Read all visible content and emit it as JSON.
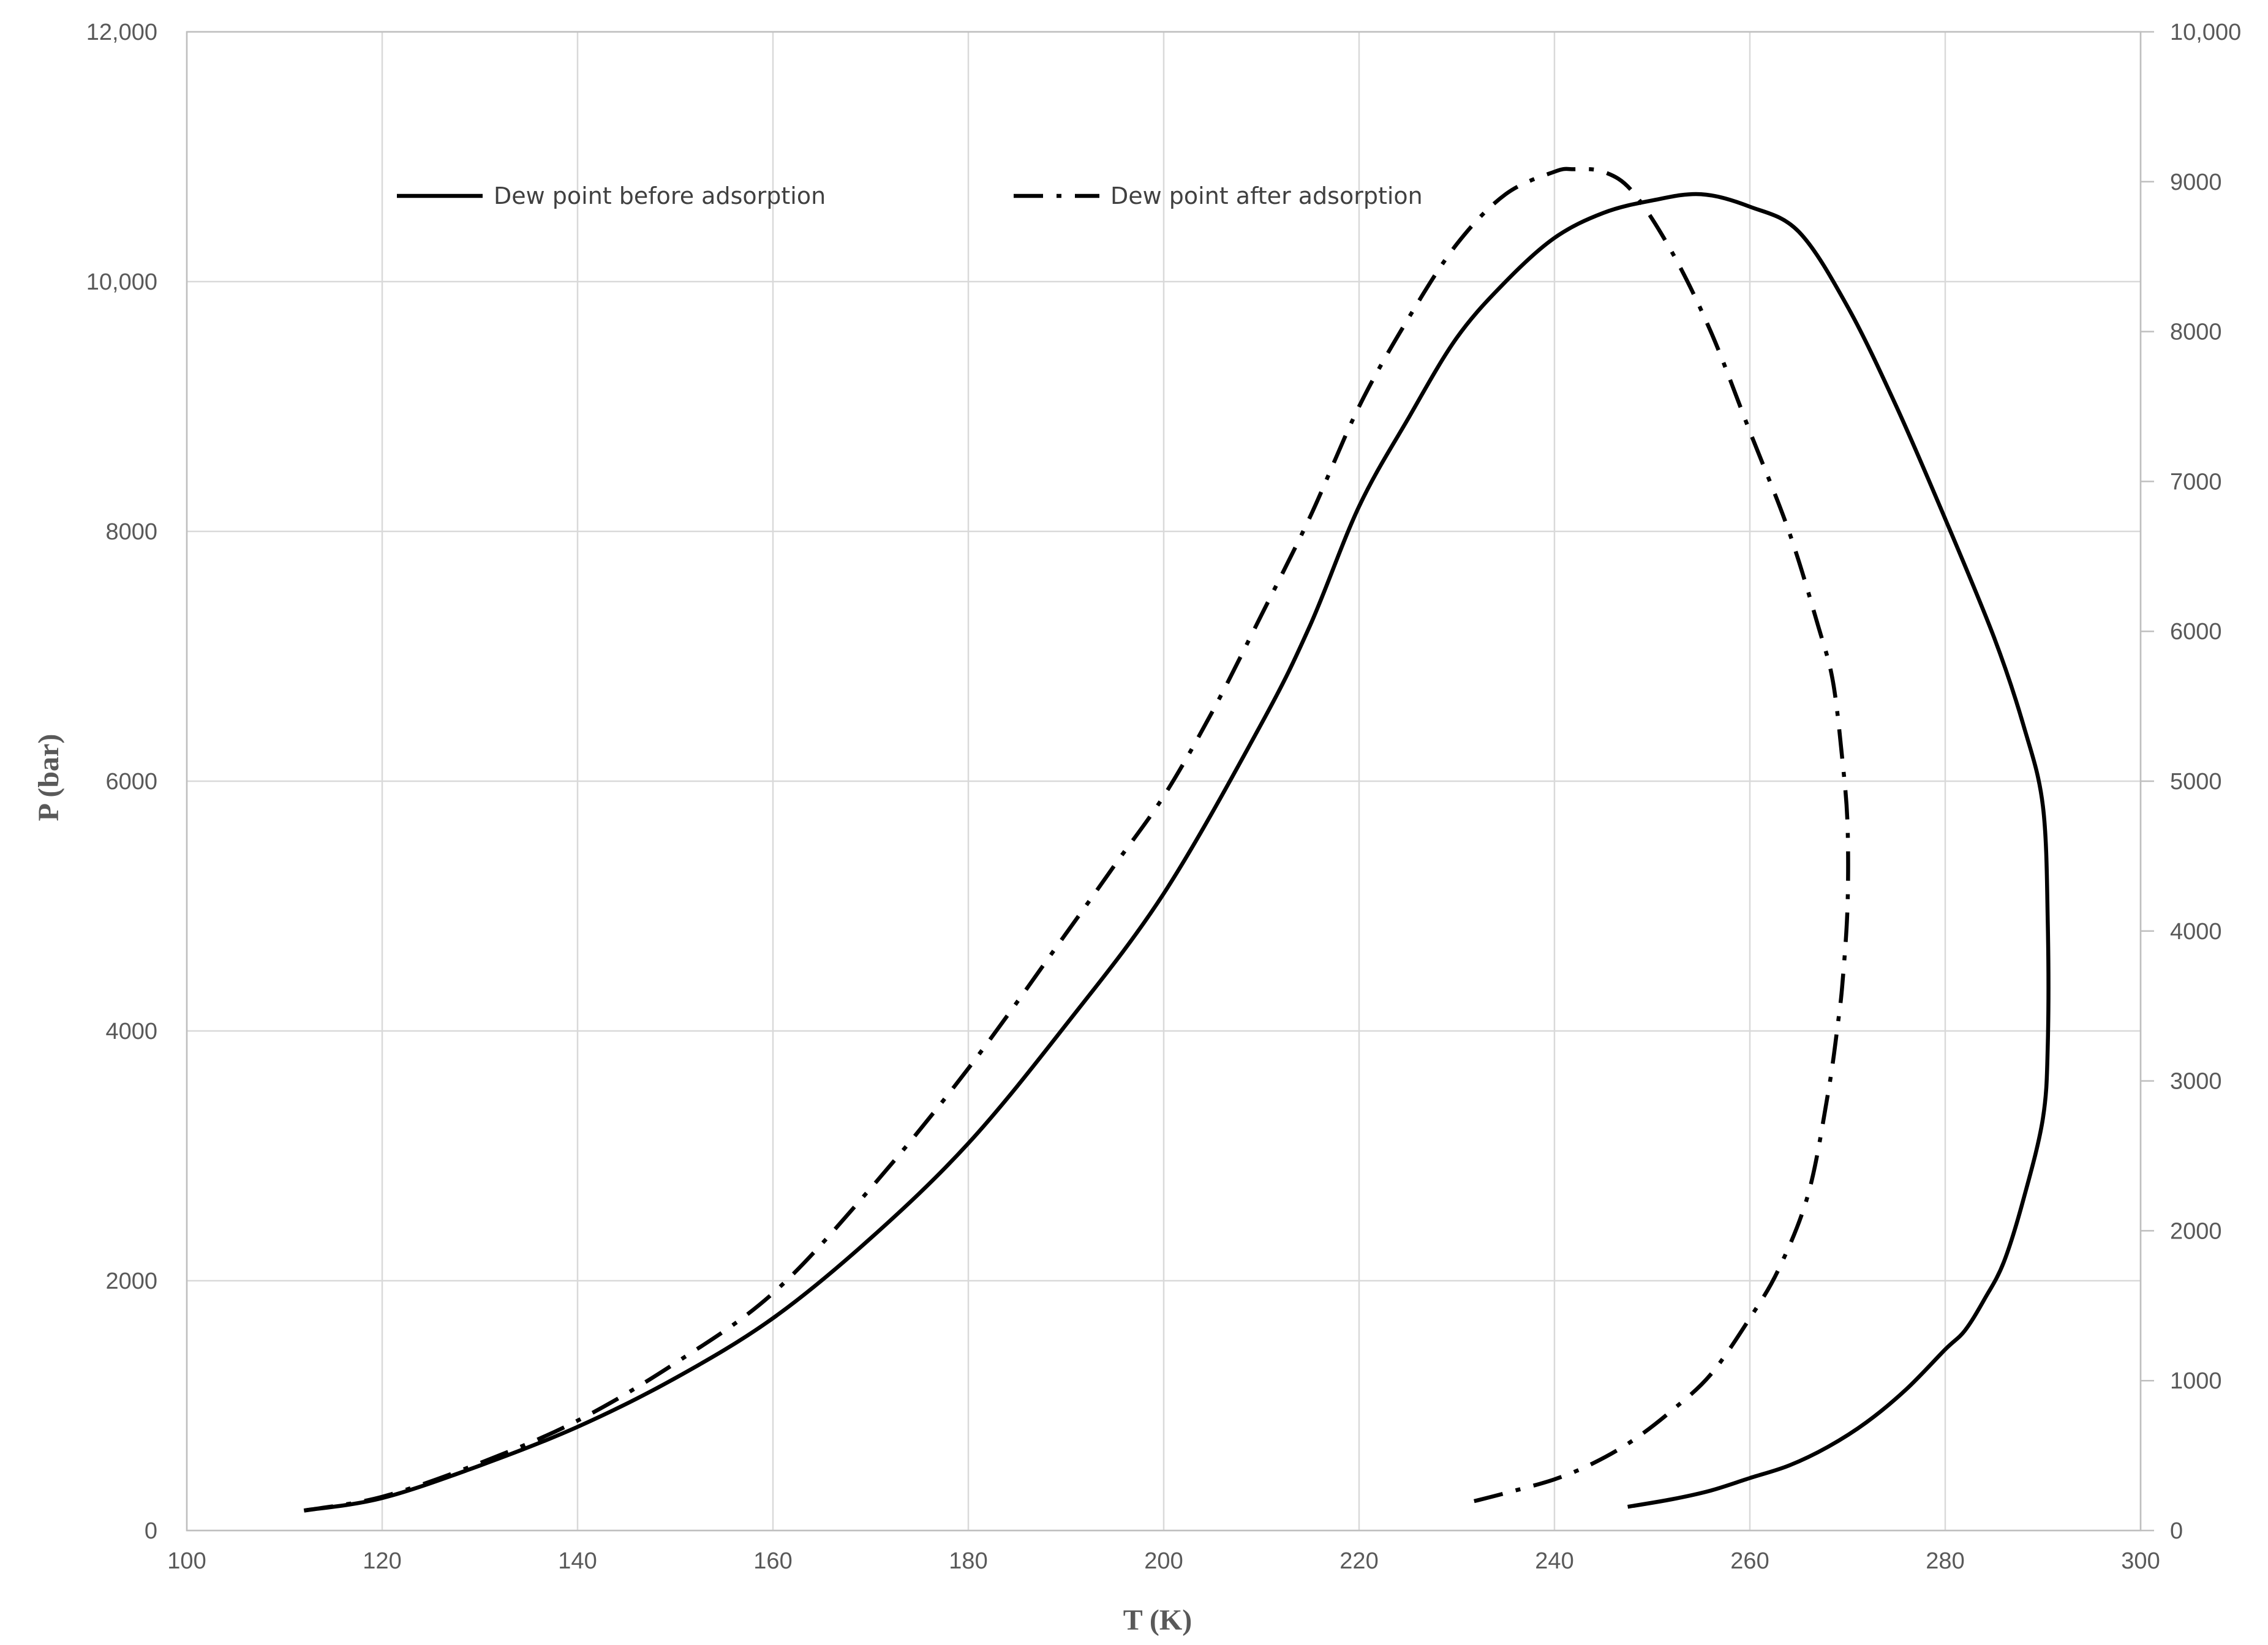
{
  "chart_data": {
    "type": "line",
    "title": "",
    "xlabel": "T (K)",
    "ylabel": "P (bar)",
    "xlim": [
      100,
      300
    ],
    "ylim": [
      0,
      12000
    ],
    "y2lim": [
      0,
      10000
    ],
    "xticks": [
      "100",
      "120",
      "140",
      "160",
      "180",
      "200",
      "220",
      "240",
      "260",
      "280",
      "300"
    ],
    "yticks": [
      "0",
      "2000",
      "4000",
      "6000",
      "8000",
      "10,000",
      "12,000"
    ],
    "y2ticks": [
      "0",
      "1000",
      "2000",
      "3000",
      "4000",
      "5000",
      "6000",
      "7000",
      "8000",
      "9000",
      "10,000"
    ],
    "grid": true,
    "legend_position": "top",
    "series": [
      {
        "name": "Dew point before adsorption",
        "line_style": "solid",
        "x": [
          112,
          120,
          130,
          140,
          150,
          160,
          170,
          180,
          190,
          200,
          210,
          215,
          220,
          225,
          230,
          235,
          240,
          245,
          250,
          255,
          260,
          265,
          270,
          275,
          280,
          285,
          288,
          290,
          290.5,
          290.5,
          290,
          288,
          286,
          284,
          282,
          280,
          276,
          272,
          268,
          264,
          260,
          256,
          252,
          247.5
        ],
        "y": [
          160,
          260,
          520,
          830,
          1220,
          1700,
          2340,
          3100,
          4050,
          5100,
          6460,
          7250,
          8200,
          8900,
          9550,
          10000,
          10350,
          10550,
          10650,
          10700,
          10600,
          10400,
          9800,
          9000,
          8100,
          7150,
          6450,
          5800,
          4850,
          3900,
          3300,
          2650,
          2150,
          1850,
          1600,
          1450,
          1130,
          870,
          670,
          520,
          420,
          320,
          250,
          190
        ]
      },
      {
        "name": "Dew point after adsorption",
        "line_style": "dash-dot",
        "x": [
          112,
          120,
          130,
          140,
          150,
          160,
          170,
          180,
          190,
          195,
          200,
          205,
          210,
          215,
          220,
          225,
          230,
          235,
          240,
          242,
          245,
          248,
          252,
          256,
          260,
          264,
          267,
          268.5,
          269.5,
          270,
          270,
          269.5,
          269,
          268,
          266,
          263,
          260,
          256,
          252,
          248,
          244,
          240,
          235,
          231
        ],
        "y": [
          160,
          270,
          540,
          880,
          1340,
          1900,
          2740,
          3700,
          4780,
          5330,
          5880,
          6560,
          7330,
          8120,
          9000,
          9700,
          10300,
          10700,
          10880,
          10900,
          10880,
          10720,
          10240,
          9600,
          8800,
          8000,
          7240,
          6800,
          6150,
          5650,
          5000,
          4400,
          4050,
          3500,
          2700,
          2100,
          1700,
          1250,
          960,
          720,
          540,
          410,
          300,
          220
        ]
      }
    ]
  }
}
